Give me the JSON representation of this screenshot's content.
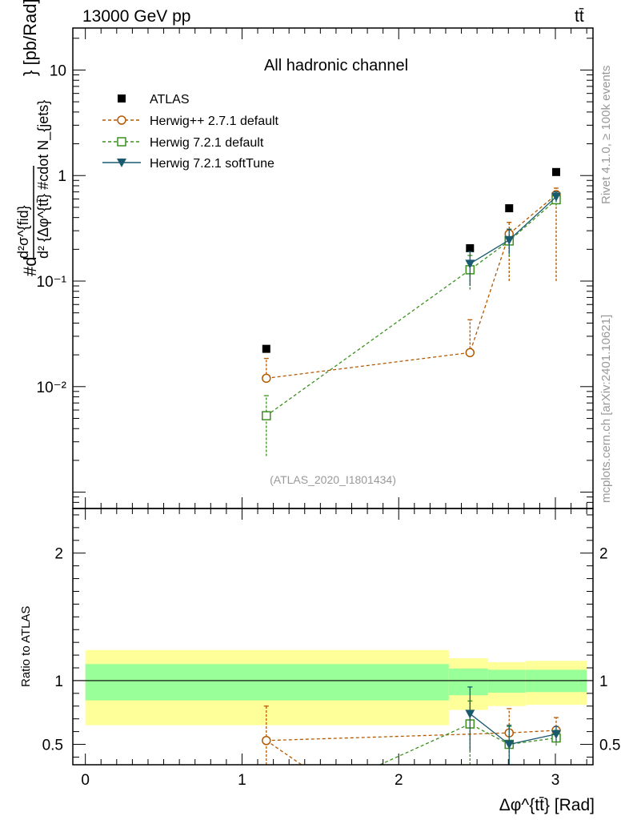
{
  "header": {
    "energy_label": "13000 GeV pp",
    "process_label": "tt̄"
  },
  "side_labels": {
    "rivet": "Rivet 4.1.0, ≥ 100k events",
    "mcplots": "mcplots.cern.ch [arXiv:2401.10621]"
  },
  "chart_data": [
    {
      "type": "line",
      "panel": "main",
      "title": "All hadronic channel",
      "analysis_label": "(ATLAS_2020_I1801434)",
      "ylabel_parts": {
        "numerator": "d²σ^{fid}",
        "denominator": "d² {Δφ^{tt̄} #cdot N_{jets}",
        "prefix": "#d",
        "unit": "} [pb/Rad]"
      },
      "yscale": "log",
      "ylim": [
        0.0007,
        25
      ],
      "xlim": [
        -0.08,
        3.24
      ],
      "ytick_labels": [
        "10",
        "1",
        "10⁻¹",
        "10⁻²"
      ],
      "ytick_values": [
        10,
        1,
        0.1,
        0.01
      ],
      "legend": [
        "ATLAS",
        "Herwig++ 2.7.1 default",
        "Herwig 7.2.1 default",
        "Herwig 7.2.1 softTune"
      ],
      "series": [
        {
          "name": "ATLAS",
          "marker": "square-filled",
          "color": "#000000",
          "x": [
            1.155,
            2.455,
            2.705,
            3.005
          ],
          "y": [
            0.0228,
            0.205,
            0.49,
            1.08
          ]
        },
        {
          "name": "Herwig++ 2.7.1 default",
          "marker": "circle-open",
          "color": "#b35900",
          "x": [
            1.155,
            2.455,
            2.705,
            3.005
          ],
          "y": [
            0.012,
            0.021,
            0.28,
            0.66
          ],
          "yerr_low": [
            0.012,
            0.021,
            0.1,
            0.1
          ],
          "yerr_high": [
            0.0185,
            0.043,
            0.36,
            0.76
          ]
        },
        {
          "name": "Herwig 7.2.1 default",
          "marker": "square-open",
          "color": "#3a8f1f",
          "x": [
            1.155,
            2.455,
            2.705,
            3.005
          ],
          "y": [
            0.0053,
            0.128,
            0.24,
            0.59
          ],
          "yerr_low": [
            0.0022,
            0.083,
            0.17,
            0.52
          ],
          "yerr_high": [
            0.0082,
            0.175,
            0.31,
            0.66
          ]
        },
        {
          "name": "Herwig 7.2.1 softTune",
          "marker": "triangle-down-filled",
          "color": "#1a5a6e",
          "x": [
            2.455,
            2.705,
            3.005
          ],
          "y": [
            0.146,
            0.245,
            0.63
          ],
          "yerr_low": [
            0.09,
            0.18,
            0.56
          ],
          "yerr_high": [
            0.19,
            0.31,
            0.7
          ]
        }
      ]
    },
    {
      "type": "line",
      "panel": "ratio",
      "ylabel": "Ratio to ATLAS",
      "xlabel": "Δφ^{tt̄} [Rad]",
      "ylim": [
        0.34,
        2.35
      ],
      "xlim": [
        -0.08,
        3.24
      ],
      "xtick_labels": [
        "0",
        "1",
        "2",
        "3"
      ],
      "xtick_values": [
        0,
        1,
        2,
        3
      ],
      "ytick_labels": [
        "2",
        "1",
        "0.5"
      ],
      "ytick_values": [
        2,
        1,
        0.5
      ],
      "bands": {
        "edges": [
          0,
          2.32,
          2.57,
          2.81,
          3.2
        ],
        "inner_low": [
          0.845,
          0.885,
          0.905,
          0.91
        ],
        "inner_high": [
          1.13,
          1.095,
          1.085,
          1.085
        ],
        "outer_low": [
          0.65,
          0.77,
          0.8,
          0.81
        ],
        "outer_high": [
          1.24,
          1.175,
          1.145,
          1.155
        ],
        "inner_color": "#99ff99",
        "outer_color": "#ffff99"
      },
      "series": [
        {
          "name": "Herwig++ 2.7.1 default",
          "color": "#b35900",
          "marker": "circle-open",
          "x": [
            1.155,
            2.705,
            3.005
          ],
          "y": [
            0.53,
            0.59,
            0.61
          ],
          "yerr_low": [
            0.0,
            0.43,
            0.51
          ],
          "yerr_high": [
            0.8,
            0.78,
            0.71
          ],
          "segments": [
            [
              1.155,
              0.53,
              1.38,
              0.34
            ]
          ]
        },
        {
          "name": "Herwig 7.2.1 default",
          "color": "#3a8f1f",
          "marker": "square-open",
          "x": [
            2.455,
            2.705,
            3.005
          ],
          "y": [
            0.66,
            0.5,
            0.55
          ],
          "yerr_low": [
            0.34,
            0.34,
            0.49
          ],
          "yerr_high": [
            0.84,
            0.64,
            0.61
          ],
          "lead_in": [
            1.88,
            0.34
          ]
        },
        {
          "name": "Herwig 7.2.1 softTune",
          "color": "#1a5a6e",
          "marker": "triangle-down-filled",
          "x": [
            2.455,
            2.705,
            3.005
          ],
          "y": [
            0.74,
            0.5,
            0.58
          ],
          "yerr_low": [
            0.45,
            0.34,
            0.52
          ],
          "yerr_high": [
            0.95,
            0.65,
            0.64
          ]
        }
      ]
    }
  ]
}
